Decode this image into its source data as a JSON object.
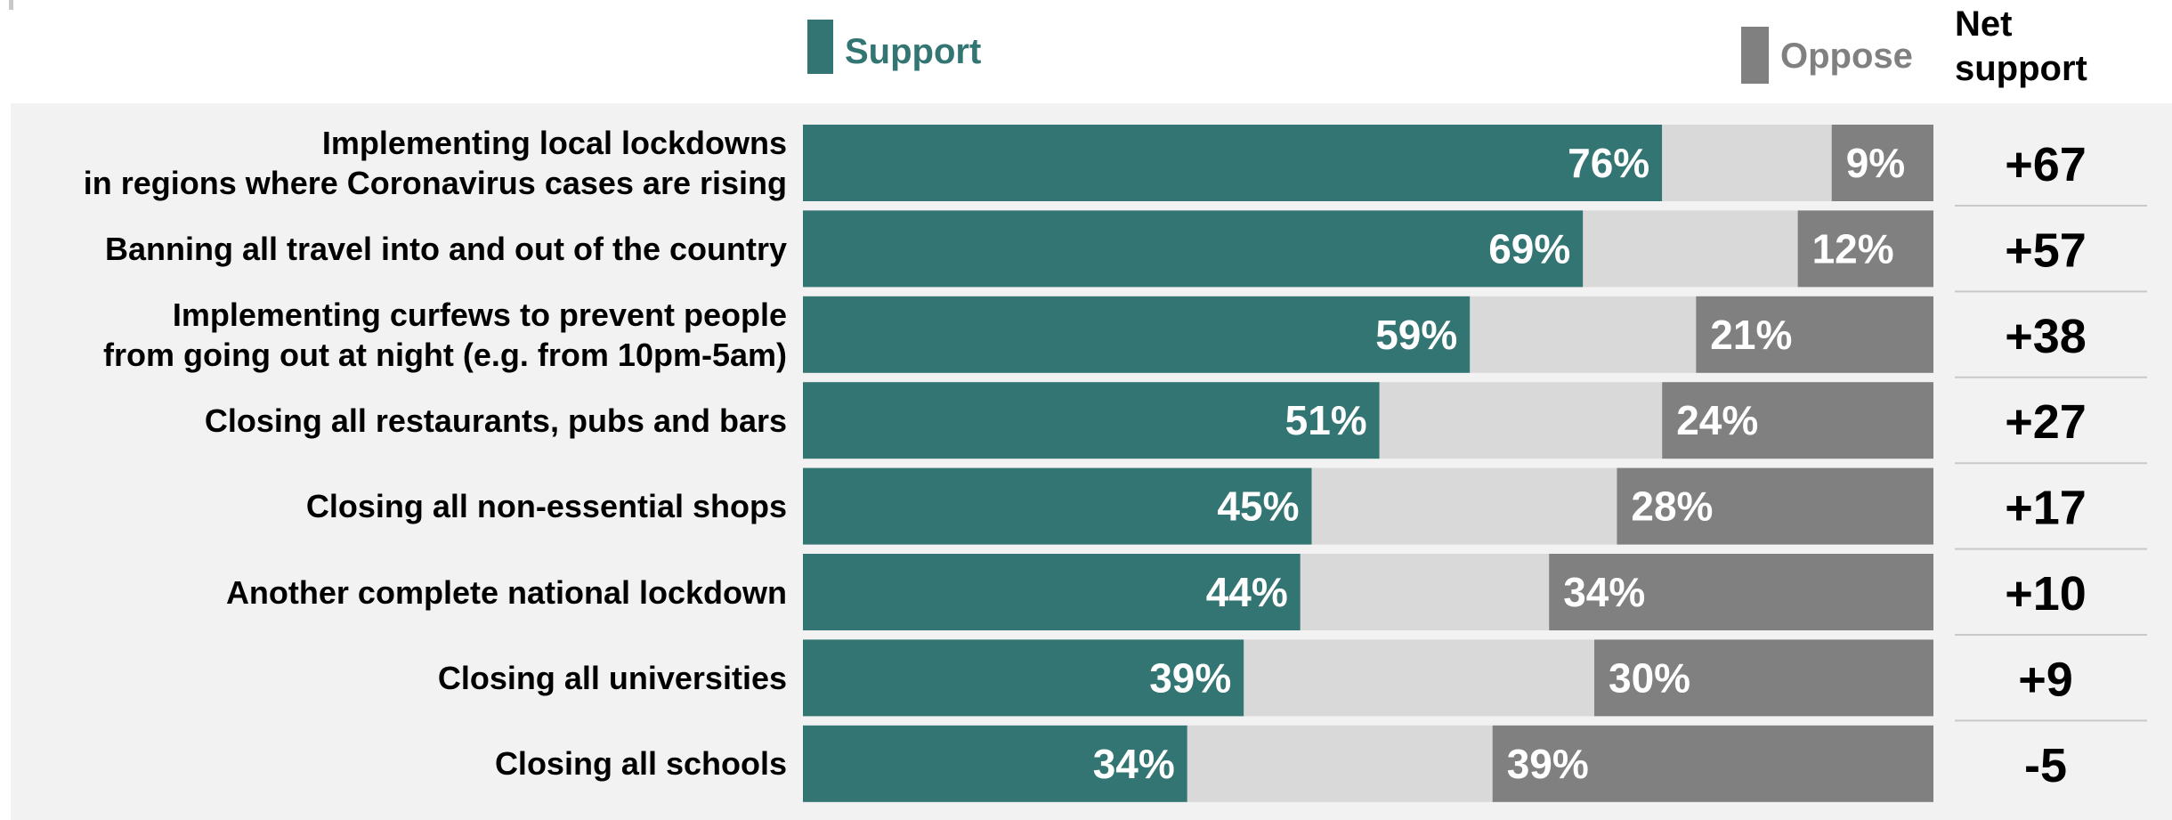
{
  "legend": {
    "support_label": "Support",
    "oppose_label": "Oppose",
    "net_header": "Net\nsupport"
  },
  "colors": {
    "support": "#337572",
    "oppose": "#808080",
    "neither": "#d9d9d9",
    "panel": "#f2f2f2"
  },
  "chart_data": {
    "type": "bar",
    "stacking": "stacked-horizontal-100",
    "categories": [
      "Implementing local lockdowns\nin regions where Coronavirus cases are rising",
      "Banning all travel into and out of the country",
      "Implementing curfews to prevent people\nfrom going out at night (e.g. from 10pm-5am)",
      "Closing all restaurants, pubs and bars",
      "Closing all non-essential shops",
      "Another complete national lockdown",
      "Closing all universities",
      "Closing all schools"
    ],
    "series": [
      {
        "name": "Support",
        "values": [
          76,
          69,
          59,
          51,
          45,
          44,
          39,
          34
        ],
        "labels": [
          "76%",
          "69%",
          "59%",
          "51%",
          "45%",
          "44%",
          "39%",
          "34%"
        ]
      },
      {
        "values": [
          15,
          19,
          20,
          25,
          27,
          22,
          31,
          27
        ]
      },
      {
        "name": "Oppose",
        "values": [
          9,
          12,
          21,
          24,
          28,
          34,
          30,
          39
        ],
        "labels": [
          "9%",
          "12%",
          "21%",
          "24%",
          "28%",
          "34%",
          "30%",
          "39%"
        ]
      }
    ],
    "net_support": [
      "+67",
      "+57",
      "+38",
      "+27",
      "+17",
      "+10",
      "+9",
      "-5"
    ],
    "xlim": [
      0,
      100
    ],
    "legend_position": "top"
  }
}
